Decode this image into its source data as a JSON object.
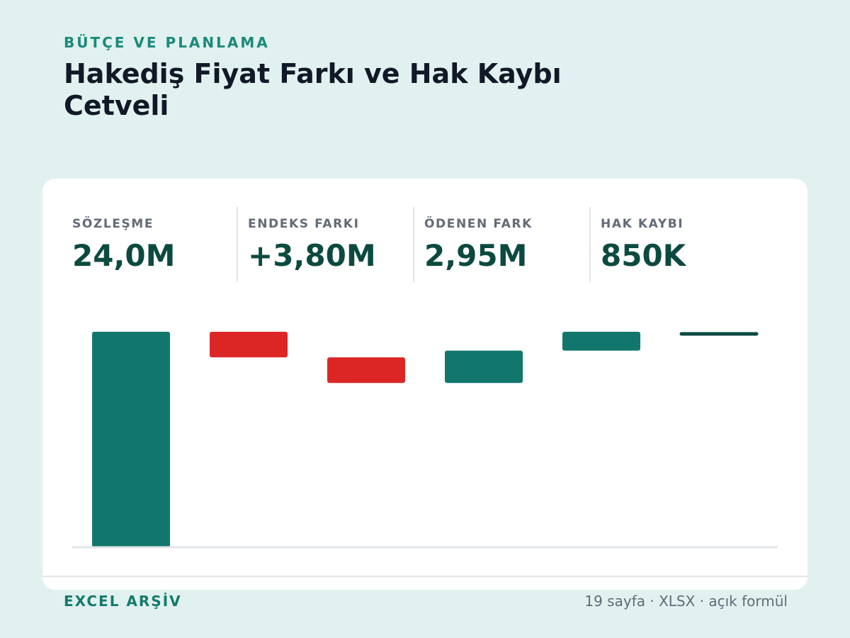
{
  "header": {
    "eyebrow": "BÜTÇE VE PLANLAMA",
    "title": "Hakediş Fiyat Farkı ve Hak Kaybı Cetveli"
  },
  "stats": [
    {
      "label": "SÖZLEŞME",
      "value": "24,0M"
    },
    {
      "label": "ENDEKS FARKI",
      "value": "+3,80M"
    },
    {
      "label": "ÖDENEN FARK",
      "value": "2,95M"
    },
    {
      "label": "HAK KAYBI",
      "value": "850K"
    }
  ],
  "footer": {
    "left": "EXCEL ARŞİV",
    "right": "19 sayfa · XLSX · açık formül"
  },
  "colors": {
    "increase": "#11776d",
    "decrease": "#dc2626",
    "total_line": "#0c4a40",
    "axis": "#e2e5e8"
  },
  "chart_data": {
    "type": "bar",
    "variant": "waterfall",
    "categories": [
      "",
      "",
      "",
      "",
      "",
      ""
    ],
    "bars": [
      {
        "start": 0.0,
        "end": 24.0,
        "kind": "increase"
      },
      {
        "start": 24.0,
        "end": 21.15,
        "kind": "decrease"
      },
      {
        "start": 21.15,
        "end": 18.3,
        "kind": "decrease"
      },
      {
        "start": 18.3,
        "end": 21.9,
        "kind": "increase"
      },
      {
        "start": 21.9,
        "end": 24.0,
        "kind": "increase"
      },
      {
        "start": 24.0,
        "end": 24.0,
        "kind": "total"
      }
    ],
    "ylim": [
      0,
      24
    ],
    "grid": false,
    "legend": "none"
  }
}
